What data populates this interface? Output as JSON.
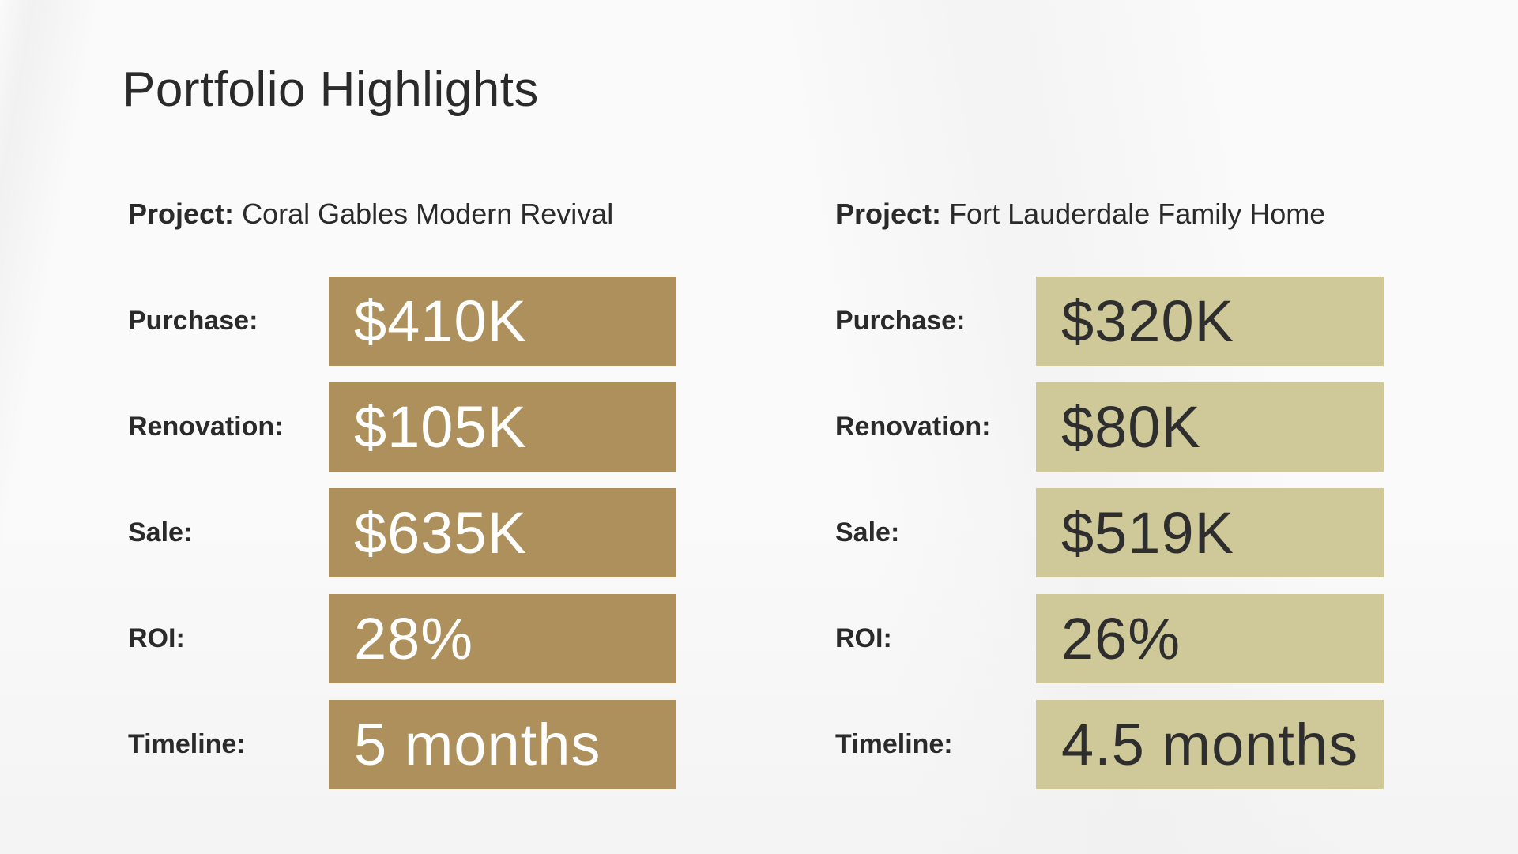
{
  "page": {
    "title": "Portfolio Highlights"
  },
  "colors": {
    "gold_box": "#ad905c",
    "khaki_box": "#cfc898",
    "text": "#2a2a2a"
  },
  "projects": [
    {
      "label": "Project:",
      "name": "Coral Gables Modern Revival",
      "rows": [
        {
          "label": "Purchase:",
          "value": "$410K"
        },
        {
          "label": "Renovation:",
          "value": "$105K"
        },
        {
          "label": "Sale:",
          "value": "$635K"
        },
        {
          "label": "ROI:",
          "value": "28%"
        },
        {
          "label": "Timeline:",
          "value": "5 months"
        }
      ]
    },
    {
      "label": "Project:",
      "name": "Fort Lauderdale Family Home",
      "rows": [
        {
          "label": "Purchase:",
          "value": "$320K"
        },
        {
          "label": "Renovation:",
          "value": "$80K"
        },
        {
          "label": "Sale:",
          "value": "$519K"
        },
        {
          "label": "ROI:",
          "value": "26%"
        },
        {
          "label": "Timeline:",
          "value": "4.5 months"
        }
      ]
    }
  ]
}
